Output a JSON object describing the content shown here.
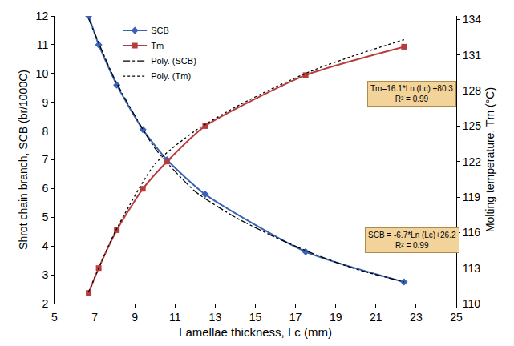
{
  "chart_data": {
    "type": "line",
    "x_label": "Lamellae thickness, Lc (mm)",
    "y_label": "Shrot chain branch, SCB (br/1000C)",
    "y2_label": "Molting temperature, Tm (°C)",
    "x": [
      6.7,
      7.2,
      8.1,
      9.4,
      10.6,
      12.5,
      17.5,
      22.4
    ],
    "series": [
      {
        "name": "SCB",
        "color": "#3a63b8",
        "marker": "diamond",
        "line_style": "solid",
        "values": [
          12.0,
          11.0,
          9.6,
          8.05,
          7.0,
          5.8,
          3.8,
          2.75
        ]
      },
      {
        "name": "Tm",
        "color": "#b83c3c",
        "marker": "square",
        "line_style": "solid",
        "axis": "y2",
        "values": [
          110.9,
          113.0,
          116.2,
          119.7,
          122.0,
          125.0,
          129.3,
          131.7
        ]
      },
      {
        "name": "Poly. (SCB)",
        "color": "#000000",
        "marker": "none",
        "line_style": "dashdot",
        "x": [
          6.7,
          8,
          10,
          12,
          14,
          16,
          18,
          20,
          22.4
        ],
        "values": [
          11.9,
          9.8,
          7.4,
          5.9,
          5.0,
          4.3,
          3.7,
          3.2,
          2.75
        ]
      },
      {
        "name": "Poly. (Tm)",
        "color": "#000000",
        "marker": "none",
        "line_style": "dot",
        "axis": "y2",
        "x": [
          6.7,
          8,
          10,
          12,
          14,
          16,
          18,
          20,
          22.4
        ],
        "values": [
          111.0,
          116.0,
          121.8,
          124.6,
          126.6,
          128.3,
          129.8,
          131.0,
          132.3
        ]
      }
    ],
    "xlim": [
      5,
      25
    ],
    "xticks": [
      5,
      7,
      9,
      11,
      13,
      15,
      17,
      19,
      21,
      23,
      25
    ],
    "ylim": [
      2,
      12
    ],
    "yticks": [
      2,
      3,
      4,
      5,
      6,
      7,
      8,
      9,
      10,
      11,
      12
    ],
    "y2lim": [
      110,
      134.3
    ],
    "y2ticks": [
      110,
      113,
      116,
      119,
      122,
      125,
      128,
      131,
      134
    ],
    "grid": false,
    "legend": "upper left",
    "annotations": [
      [
        "Tm=16.1*Ln (Lc) +80.3",
        "R² = 0.99"
      ],
      [
        "SCB = -6.7*Ln (Lc)+26.2",
        "R² = 0.99"
      ]
    ]
  }
}
